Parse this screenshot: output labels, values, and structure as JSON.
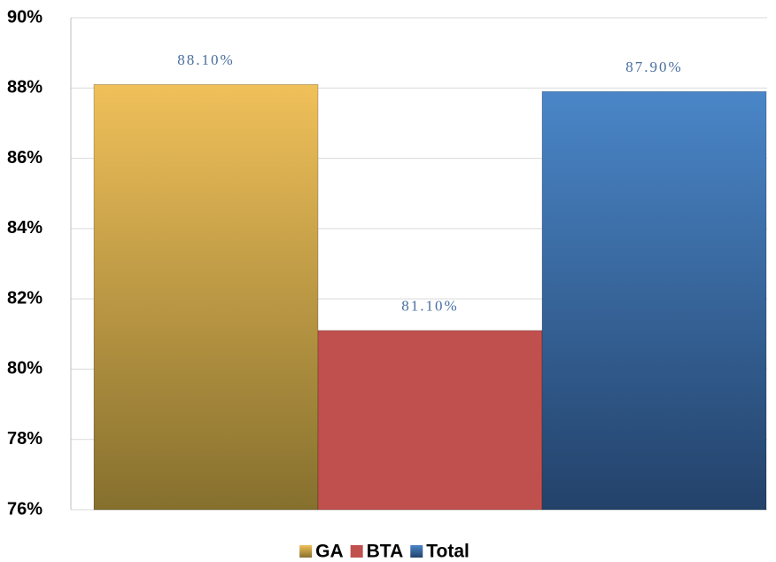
{
  "chart_data": {
    "type": "bar",
    "categories": [
      null
    ],
    "series": [
      {
        "name": "GA",
        "color": "#f0c05a",
        "gradient_end": "#86702e",
        "values": [
          88.1
        ],
        "value_labels": [
          "88.10%"
        ]
      },
      {
        "name": "BTA",
        "color": "#c0504d",
        "values": [
          81.1
        ],
        "value_labels": [
          "81.10%"
        ]
      },
      {
        "name": "Total",
        "color": "#4a86c8",
        "gradient_end": "#23426a",
        "values": [
          87.9
        ],
        "value_labels": [
          "87.90%"
        ]
      }
    ],
    "ylim": [
      76,
      90
    ],
    "yticks": [
      {
        "value": 76,
        "label": "76%"
      },
      {
        "value": 78,
        "label": "78%"
      },
      {
        "value": 80,
        "label": "80%"
      },
      {
        "value": 82,
        "label": "82%"
      },
      {
        "value": 84,
        "label": "84%"
      },
      {
        "value": 86,
        "label": "86%"
      },
      {
        "value": 88,
        "label": "88%"
      },
      {
        "value": 90,
        "label": "90%"
      }
    ],
    "grid": true,
    "legend": "bottom"
  }
}
